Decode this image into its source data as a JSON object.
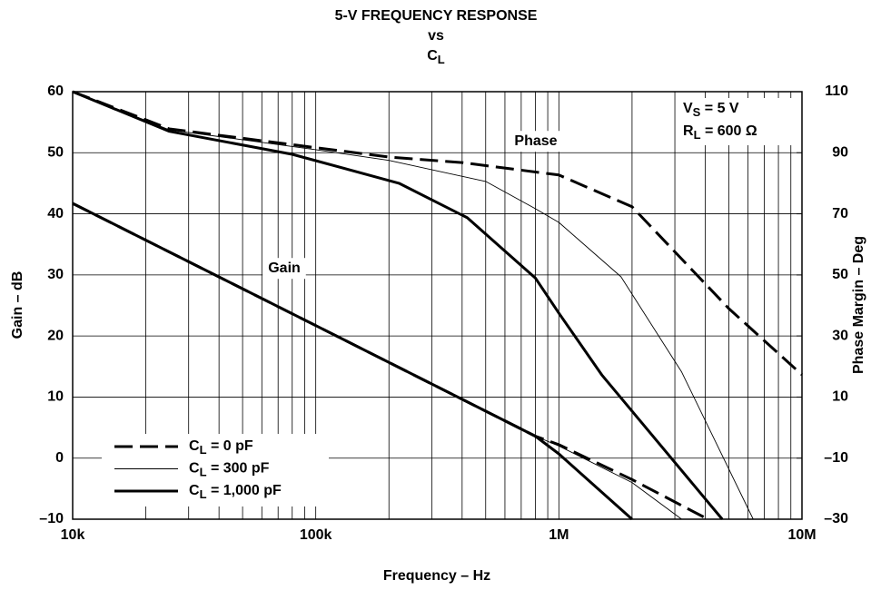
{
  "chart_data": {
    "type": "line",
    "title": [
      "5-V FREQUENCY RESPONSE",
      "vs",
      "CL"
    ],
    "x_label": "Frequency – Hz",
    "y_label": "Gain – dB",
    "y2_label": "Phase Margin – Deg",
    "log_x": true,
    "grid": true,
    "legend": "lower left",
    "color": "#000000",
    "xlim": [
      10000,
      10000000
    ],
    "xticks": [
      {
        "value": 10000,
        "label": "10k"
      },
      {
        "value": 100000,
        "label": "100k"
      },
      {
        "value": 1000000,
        "label": "1M"
      },
      {
        "value": 10000000,
        "label": "10M"
      }
    ],
    "xminor": [
      20000,
      30000,
      40000,
      50000,
      60000,
      70000,
      80000,
      90000,
      200000,
      300000,
      400000,
      500000,
      600000,
      700000,
      800000,
      900000,
      2000000,
      3000000,
      4000000,
      5000000,
      6000000,
      7000000,
      8000000,
      9000000
    ],
    "ylim": [
      -10,
      60
    ],
    "yticks": [
      {
        "value": -10,
        "label": "–10"
      },
      0,
      10,
      20,
      30,
      40,
      50,
      60
    ],
    "y2lim": [
      -30,
      110
    ],
    "y2ticks": [
      {
        "value": -30,
        "label": "–30"
      },
      {
        "value": -10,
        "label": "–10"
      },
      10,
      30,
      50,
      70,
      90,
      110
    ],
    "annotations": [
      "VS = 5 V",
      "RL = 600 Ω"
    ],
    "curve_labels": [
      "Phase",
      "Gain"
    ],
    "series": [
      {
        "name": "CL = 0 pF",
        "style": "dashed",
        "gain": {
          "x": [
            10000,
            100000,
            800000,
            1000000,
            2000000,
            4100000
          ],
          "values": [
            41.7,
            21.7,
            3.6,
            2.2,
            -3.5,
            -10
          ]
        },
        "phase": {
          "x": [
            10000,
            25000,
            200000,
            400000,
            1000000,
            2000000,
            5000000,
            10000000
          ],
          "values": [
            110,
            97.8,
            88.6,
            86.8,
            82.7,
            72.3,
            39,
            17.3
          ],
          "axis": "y2"
        }
      },
      {
        "name": "CL = 300 pF",
        "style": "thin",
        "gain": {
          "x": [
            10000,
            100000,
            800000,
            1000000,
            2000000,
            3200000
          ],
          "values": [
            41.7,
            21.7,
            3.6,
            2,
            -4,
            -10
          ]
        },
        "phase": {
          "x": [
            10000,
            25000,
            100000,
            200000,
            500000,
            800000,
            1000000,
            1800000,
            3200000,
            6300000
          ],
          "values": [
            110,
            97.5,
            91,
            87.5,
            80.6,
            71.7,
            67.2,
            49.4,
            18.2,
            -30
          ],
          "axis": "y2"
        }
      },
      {
        "name": "CL = 1,000 pF",
        "style": "thick",
        "gain": {
          "x": [
            10000,
            100000,
            800000,
            1000000,
            2000000
          ],
          "values": [
            41.7,
            21.7,
            3.6,
            0.7,
            -10
          ]
        },
        "phase": {
          "x": [
            10000,
            25000,
            80000,
            220000,
            420000,
            800000,
            1000000,
            1500000,
            2000000,
            4700000
          ],
          "values": [
            110,
            97,
            89.5,
            80,
            68.7,
            49,
            37.5,
            17.3,
            5.4,
            -30
          ],
          "axis": "y2"
        }
      }
    ]
  }
}
